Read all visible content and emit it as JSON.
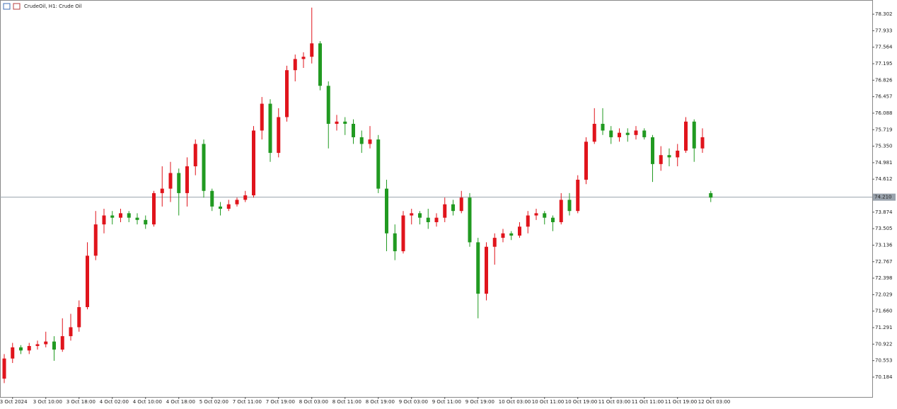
{
  "chart_data": {
    "type": "candlestick",
    "title": "CrudeOil, H1:  Crude Oil",
    "up_color": "#e0141c",
    "down_color": "#219a21",
    "ylim": [
      69.74,
      78.62
    ],
    "yticks": [
      {
        "value": 70.184,
        "label": "70.184"
      },
      70.553,
      70.922,
      71.291,
      {
        "value": 71.66,
        "label": "71.660"
      },
      72.029,
      72.398,
      72.767,
      73.136,
      73.505,
      73.874,
      74.612,
      74.981,
      {
        "value": 75.35,
        "label": "75.350"
      },
      75.719,
      76.088,
      76.457,
      76.826,
      77.195,
      77.564,
      77.933,
      78.302
    ],
    "current_price": {
      "value": 74.21,
      "label": "74.210"
    },
    "categories": [
      null,
      "3 Oct 2024",
      null,
      null,
      null,
      "3 Oct 10:00",
      null,
      null,
      null,
      "3 Oct 18:00",
      null,
      null,
      null,
      "4 Oct 02:00",
      null,
      null,
      null,
      "4 Oct 10:00",
      null,
      null,
      null,
      "4 Oct 18:00",
      null,
      null,
      null,
      "5 Oct 02:00",
      null,
      null,
      null,
      "7 Oct 11:00",
      null,
      null,
      null,
      "7 Oct 19:00",
      null,
      null,
      null,
      "8 Oct 03:00",
      null,
      null,
      null,
      "8 Oct 11:00",
      null,
      null,
      null,
      "8 Oct 19:00",
      null,
      null,
      null,
      "9 Oct 03:00",
      null,
      null,
      null,
      "9 Oct 11:00",
      null,
      null,
      null,
      "9 Oct 19:00",
      null,
      null,
      null,
      "10 Oct 03:00",
      null,
      null,
      null,
      "10 Oct 11:00",
      null,
      null,
      null,
      "10 Oct 19:00",
      null,
      null,
      null,
      "11 Oct 03:00",
      null,
      null,
      null,
      "11 Oct 11:00",
      null,
      null,
      null,
      "11 Oct 19:00",
      null,
      null,
      null,
      "12 Oct 03:00"
    ],
    "ohlc": [
      [
        70.15,
        70.7,
        70.05,
        70.6
      ],
      [
        70.6,
        70.95,
        70.5,
        70.85
      ],
      [
        70.85,
        70.9,
        70.7,
        70.78
      ],
      [
        70.78,
        70.95,
        70.7,
        70.88
      ],
      [
        70.88,
        71.0,
        70.8,
        70.92
      ],
      [
        70.92,
        71.2,
        70.85,
        70.98
      ],
      [
        70.98,
        71.1,
        70.55,
        70.8
      ],
      [
        70.8,
        71.5,
        70.75,
        71.1
      ],
      [
        71.1,
        71.6,
        71.0,
        71.3
      ],
      [
        71.3,
        71.9,
        71.2,
        71.75
      ],
      [
        71.75,
        73.2,
        71.7,
        72.9
      ],
      [
        72.9,
        73.9,
        72.8,
        73.6
      ],
      [
        73.6,
        73.95,
        73.4,
        73.8
      ],
      [
        73.8,
        73.9,
        73.6,
        73.75
      ],
      [
        73.75,
        73.95,
        73.65,
        73.85
      ],
      [
        73.85,
        73.9,
        73.65,
        73.75
      ],
      [
        73.75,
        73.85,
        73.6,
        73.7
      ],
      [
        73.7,
        73.8,
        73.5,
        73.6
      ],
      [
        73.6,
        74.35,
        73.55,
        74.3
      ],
      [
        74.3,
        74.9,
        74.0,
        74.4
      ],
      [
        74.4,
        75.0,
        74.1,
        74.75
      ],
      [
        74.75,
        74.85,
        73.8,
        74.3
      ],
      [
        74.3,
        75.1,
        74.0,
        74.9
      ],
      [
        74.9,
        75.5,
        74.7,
        75.4
      ],
      [
        75.4,
        75.5,
        74.2,
        74.35
      ],
      [
        74.35,
        74.4,
        73.9,
        74.0
      ],
      [
        74.0,
        74.1,
        73.8,
        73.95
      ],
      [
        73.95,
        74.15,
        73.9,
        74.05
      ],
      [
        74.05,
        74.2,
        74.0,
        74.15
      ],
      [
        74.15,
        74.35,
        74.1,
        74.25
      ],
      [
        74.25,
        75.8,
        74.2,
        75.7
      ],
      [
        75.7,
        76.45,
        75.5,
        76.3
      ],
      [
        76.3,
        76.4,
        75.0,
        75.2
      ],
      [
        75.2,
        76.2,
        75.1,
        76.0
      ],
      [
        76.0,
        77.15,
        75.9,
        77.05
      ],
      [
        77.05,
        77.4,
        76.8,
        77.3
      ],
      [
        77.3,
        77.45,
        77.1,
        77.35
      ],
      [
        77.35,
        78.45,
        77.2,
        77.65
      ],
      [
        77.65,
        77.7,
        76.6,
        76.7
      ],
      [
        76.7,
        76.8,
        75.3,
        75.85
      ],
      [
        75.85,
        76.05,
        75.7,
        75.9
      ],
      [
        75.9,
        76.0,
        75.6,
        75.85
      ],
      [
        75.85,
        75.95,
        75.4,
        75.55
      ],
      [
        75.55,
        75.7,
        75.2,
        75.4
      ],
      [
        75.4,
        75.8,
        75.3,
        75.5
      ],
      [
        75.5,
        75.6,
        74.3,
        74.4
      ],
      [
        74.4,
        74.6,
        73.0,
        73.4
      ],
      [
        73.4,
        73.6,
        72.8,
        73.0
      ],
      [
        73.0,
        73.9,
        72.95,
        73.8
      ],
      [
        73.8,
        73.95,
        73.6,
        73.85
      ],
      [
        73.85,
        73.9,
        73.6,
        73.75
      ],
      [
        73.75,
        73.95,
        73.5,
        73.65
      ],
      [
        73.65,
        73.85,
        73.55,
        73.75
      ],
      [
        73.75,
        74.2,
        73.65,
        74.05
      ],
      [
        74.05,
        74.15,
        73.8,
        73.9
      ],
      [
        73.9,
        74.35,
        73.85,
        74.2
      ],
      [
        74.2,
        74.3,
        73.1,
        73.2
      ],
      [
        73.2,
        73.3,
        71.5,
        72.05
      ],
      [
        72.05,
        73.2,
        71.9,
        73.1
      ],
      [
        73.1,
        73.4,
        72.7,
        73.3
      ],
      [
        73.3,
        73.5,
        73.2,
        73.4
      ],
      [
        73.4,
        73.45,
        73.25,
        73.35
      ],
      [
        73.35,
        73.65,
        73.3,
        73.55
      ],
      [
        73.55,
        73.9,
        73.4,
        73.8
      ],
      [
        73.8,
        73.95,
        73.7,
        73.85
      ],
      [
        73.85,
        73.9,
        73.6,
        73.75
      ],
      [
        73.75,
        73.8,
        73.45,
        73.65
      ],
      [
        73.65,
        74.3,
        73.6,
        74.15
      ],
      [
        74.15,
        74.3,
        73.8,
        73.9
      ],
      [
        73.9,
        74.7,
        73.85,
        74.6
      ],
      [
        74.6,
        75.55,
        74.5,
        75.45
      ],
      [
        75.45,
        76.2,
        75.4,
        75.85
      ],
      [
        75.85,
        76.2,
        75.6,
        75.7
      ],
      [
        75.7,
        75.8,
        75.4,
        75.55
      ],
      [
        75.55,
        75.75,
        75.45,
        75.65
      ],
      [
        75.65,
        75.75,
        75.45,
        75.6
      ],
      [
        75.6,
        75.8,
        75.5,
        75.7
      ],
      [
        75.7,
        75.75,
        75.5,
        75.55
      ],
      [
        75.55,
        75.6,
        74.55,
        74.95
      ],
      [
        74.95,
        75.35,
        74.8,
        75.15
      ],
      [
        75.15,
        75.3,
        74.9,
        75.1
      ],
      [
        75.1,
        75.4,
        74.9,
        75.25
      ],
      [
        75.25,
        76.0,
        75.2,
        75.9
      ],
      [
        75.9,
        75.95,
        75.0,
        75.3
      ],
      [
        75.3,
        75.75,
        75.2,
        75.55
      ],
      [
        74.3,
        74.35,
        74.1,
        74.2
      ]
    ]
  }
}
